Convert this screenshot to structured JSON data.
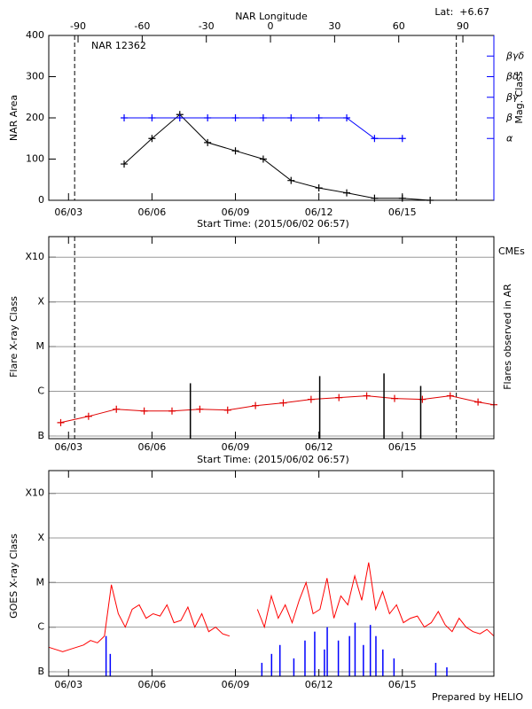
{
  "chart_data": [
    {
      "type": "line",
      "title": "NAR 12362",
      "annotation": "Lat:  +6.67",
      "xlabel": "Start Time: (2015/06/02 06:57)",
      "ylabel": "NAR Area",
      "y2label": "Mag. Class",
      "x2label": "NAR Longitude",
      "xlim": [
        2.29,
        18.29
      ],
      "xticks": [
        {
          "value": 3,
          "label": "06/03"
        },
        {
          "value": 6,
          "label": "06/06"
        },
        {
          "value": 9,
          "label": "06/09"
        },
        {
          "value": 12,
          "label": "06/12"
        },
        {
          "value": 15,
          "label": "06/15"
        }
      ],
      "x2lim": [
        -103.7,
        104.5
      ],
      "x2ticks": [
        -90,
        -60,
        -30,
        0,
        30,
        60,
        90
      ],
      "ylim": [
        0,
        400
      ],
      "yticks": [
        0,
        100,
        200,
        300,
        400
      ],
      "y2lim": [
        -2,
        6
      ],
      "y2ticks": [
        {
          "value": 1,
          "label": "α"
        },
        {
          "value": 2,
          "label": "β"
        },
        {
          "value": 3,
          "label": "βγ"
        },
        {
          "value": 4,
          "label": "βδ"
        },
        {
          "value": 5,
          "label": "βγδ"
        }
      ],
      "y2color": "#0000ff",
      "grid": false,
      "vlines": [
        3.22,
        16.94
      ],
      "series": [
        {
          "color": "#000000",
          "marker": "+",
          "x": [
            5,
            6,
            7,
            8,
            9,
            10,
            11,
            12,
            13,
            14,
            15,
            16
          ],
          "values": [
            88,
            150,
            208,
            140,
            120,
            100,
            48,
            30,
            18,
            5,
            5,
            0
          ]
        },
        {
          "color": "#0000ff",
          "marker": "+",
          "axis": "y2",
          "x": [
            5,
            6,
            7,
            8,
            9,
            10,
            11,
            12,
            13,
            14,
            15
          ],
          "values": [
            2,
            2,
            2,
            2,
            2,
            2,
            2,
            2,
            2,
            1,
            1
          ]
        }
      ]
    },
    {
      "type": "line",
      "xlabel": "Start Time: (2015/06/02 06:57)",
      "ylabel": "Flare X-ray Class",
      "y2label": "Flares observed in AR",
      "note": "CMEs",
      "note_color": "#e00000",
      "xlim": [
        2.29,
        18.29
      ],
      "xticks": [
        {
          "value": 3,
          "label": "06/03"
        },
        {
          "value": 6,
          "label": "06/06"
        },
        {
          "value": 9,
          "label": "06/09"
        },
        {
          "value": 12,
          "label": "06/12"
        },
        {
          "value": 15,
          "label": "06/15"
        }
      ],
      "ylim": [
        -7.06,
        -2.54
      ],
      "yticks": [
        {
          "value": -7,
          "label": "B"
        },
        {
          "value": -6,
          "label": "C"
        },
        {
          "value": -5,
          "label": "M"
        },
        {
          "value": -4,
          "label": "X"
        },
        {
          "value": -3,
          "label": "X10"
        }
      ],
      "grid": true,
      "vlines": [
        3.22,
        16.94
      ],
      "series": [
        {
          "color": "#e00000",
          "marker": "+",
          "x": [
            2.72,
            3.72,
            4.72,
            5.72,
            6.72,
            7.72,
            8.72,
            9.72,
            10.72,
            11.72,
            12.72,
            13.72,
            14.72,
            15.72,
            16.72,
            17.72,
            18.29
          ],
          "values": [
            -6.7,
            -6.56,
            -6.4,
            -6.44,
            -6.44,
            -6.4,
            -6.42,
            -6.32,
            -6.26,
            -6.18,
            -6.14,
            -6.1,
            -6.16,
            -6.18,
            -6.1,
            -6.24,
            -6.3
          ]
        },
        {
          "color": "#000000",
          "kind": "bar",
          "x": [
            7.38,
            12.03,
            14.34,
            15.66
          ],
          "values": [
            -5.82,
            -5.66,
            -5.6,
            -5.88
          ]
        }
      ]
    },
    {
      "type": "line",
      "ylabel": "GOES X-ray Class",
      "xlim": [
        2.29,
        18.29
      ],
      "xticks": [
        {
          "value": 3,
          "label": "06/03"
        },
        {
          "value": 6,
          "label": "06/06"
        },
        {
          "value": 9,
          "label": "06/09"
        },
        {
          "value": 12,
          "label": "06/12"
        },
        {
          "value": 15,
          "label": "06/15"
        }
      ],
      "ylim": [
        -7.1,
        -2.49
      ],
      "yticks": [
        {
          "value": -7,
          "label": "B"
        },
        {
          "value": -6,
          "label": "C"
        },
        {
          "value": -5,
          "label": "M"
        },
        {
          "value": -4,
          "label": "X"
        },
        {
          "value": -3,
          "label": "X10"
        }
      ],
      "grid": true,
      "series": [
        {
          "color": "#ff0000",
          "x": [
            2.29,
            2.54,
            2.79,
            3.04,
            3.29,
            3.54,
            3.79,
            4.04,
            4.29,
            4.54,
            4.79,
            5.04,
            5.29,
            5.54,
            5.79,
            6.04,
            6.29,
            6.54,
            6.79,
            7.04,
            7.29,
            7.54,
            7.79,
            8.04,
            8.29,
            8.54,
            8.79,
            9.04,
            9.29,
            9.54,
            9.79,
            10.04,
            10.29,
            10.54,
            10.79,
            11.04,
            11.29,
            11.54,
            11.79,
            12.04,
            12.29,
            12.54,
            12.79,
            13.04,
            13.29,
            13.54,
            13.79,
            14.04,
            14.29,
            14.54,
            14.79,
            15.04,
            15.29,
            15.54,
            15.79,
            16.04,
            16.29,
            16.54,
            16.79,
            17.04,
            17.29,
            17.54,
            17.79,
            18.04,
            18.29
          ],
          "values": [
            -6.45,
            -6.5,
            -6.55,
            -6.5,
            -6.45,
            -6.4,
            -6.3,
            -6.35,
            -6.2,
            -5.05,
            -5.7,
            -6.0,
            -5.6,
            -5.5,
            -5.8,
            -5.7,
            -5.75,
            -5.5,
            -5.9,
            -5.85,
            -5.55,
            -6.0,
            -5.7,
            -6.1,
            -6.0,
            -6.15,
            -6.2,
            null,
            null,
            null,
            -5.6,
            -6.0,
            -5.3,
            -5.8,
            -5.5,
            -5.9,
            -5.4,
            -5.0,
            -5.7,
            -5.6,
            -4.9,
            -5.8,
            -5.3,
            -5.5,
            -4.85,
            -5.4,
            -4.55,
            -5.6,
            -5.2,
            -5.7,
            -5.5,
            -5.9,
            -5.8,
            -5.75,
            -6.0,
            -5.9,
            -5.65,
            -5.95,
            -6.1,
            -5.8,
            -6.0,
            -6.1,
            -6.15,
            -6.05,
            -6.2
          ]
        },
        {
          "color": "#0000ff",
          "kind": "bar",
          "x": [
            4.35,
            4.5,
            9.95,
            10.3,
            10.6,
            11.1,
            11.5,
            11.85,
            12.2,
            12.3,
            12.7,
            13.1,
            13.3,
            13.6,
            13.85,
            14.05,
            14.3,
            14.7,
            16.2,
            16.6
          ],
          "values": [
            -6.2,
            -6.6,
            -6.8,
            -6.6,
            -6.4,
            -6.7,
            -6.3,
            -6.1,
            -6.5,
            -6.0,
            -6.3,
            -6.2,
            -5.9,
            -6.4,
            -5.95,
            -6.2,
            -6.5,
            -6.7,
            -6.8,
            -6.9
          ]
        }
      ]
    }
  ],
  "footer": "Prepared by HELIO"
}
